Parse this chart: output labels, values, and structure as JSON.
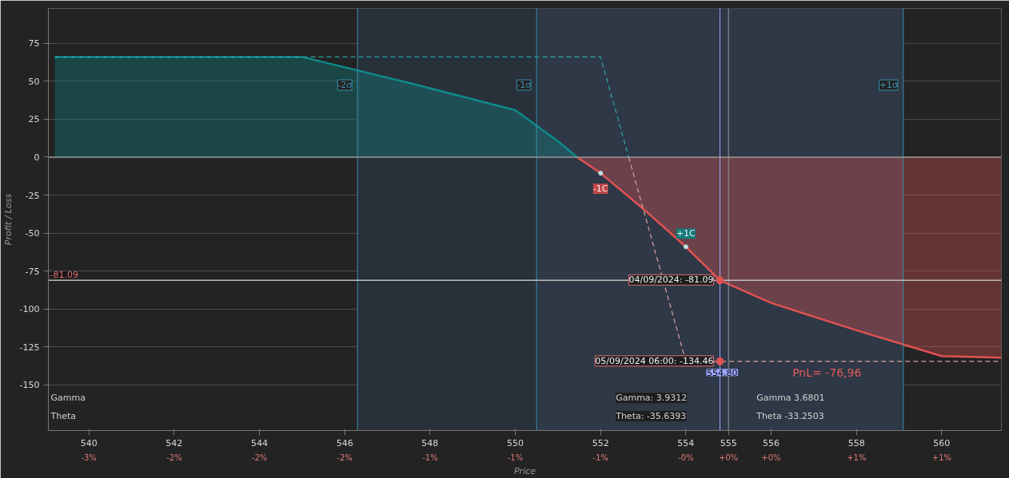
{
  "chart_data": {
    "type": "line",
    "xlabel": "Price",
    "ylabel": "Profit / Loss",
    "xlim": [
      539.05,
      561.4
    ],
    "ylim": [
      -180,
      98
    ],
    "xticks": [
      540,
      542,
      544,
      546,
      548,
      550,
      552,
      554,
      555,
      556,
      558,
      560
    ],
    "x2lim": [
      -2.874,
      1.153
    ],
    "x2ticks": [
      {
        "value": -2.703,
        "label": "-3%"
      },
      {
        "value": -2.342,
        "label": "-2%"
      },
      {
        "value": -1.982,
        "label": "-2%"
      },
      {
        "value": -1.622,
        "label": "-2%"
      },
      {
        "value": -1.261,
        "label": "-1%"
      },
      {
        "value": -0.901,
        "label": "-1%"
      },
      {
        "value": -0.541,
        "label": "-1%"
      },
      {
        "value": -0.18,
        "label": "-0%"
      },
      {
        "value": 0,
        "label": "+0%"
      },
      {
        "value": 0.18,
        "label": "+0%"
      },
      {
        "value": 0.541,
        "label": "+1%"
      },
      {
        "value": 0.901,
        "label": "+1%"
      }
    ],
    "yticks": [
      -150,
      -125,
      -100,
      -75,
      -50,
      -25,
      0,
      25,
      50,
      75
    ],
    "grid": "y",
    "series": [
      {
        "type": "area",
        "color": "#0e8a8a",
        "x": [
          539.2,
          545,
          547.5,
          550,
          551,
          551.45
        ],
        "values": [
          66,
          66,
          49,
          31,
          10.5,
          0
        ]
      },
      {
        "type": "area",
        "color": "#e05252",
        "x": [
          551.45,
          552,
          553,
          554,
          554.8,
          556,
          558,
          560,
          561.4
        ],
        "values": [
          0,
          -10.5,
          -34,
          -59,
          -81.09,
          -96,
          -114,
          -131,
          -132
        ]
      },
      {
        "line_style": "dashed",
        "color": "#2aa8a8",
        "x": [
          539.2,
          552,
          552.66
        ],
        "values": [
          66,
          66,
          0
        ]
      },
      {
        "line_style": "dashed",
        "color": "#d9a0a0",
        "x": [
          552.66,
          554,
          554.8,
          561.4
        ],
        "values": [
          0,
          -134.46,
          -134.46,
          -134.46
        ]
      }
    ],
    "bands": [
      {
        "axis": "x",
        "from": 546.3,
        "to": 559.1,
        "color": "#28303a"
      },
      {
        "axis": "x",
        "from": 550.5,
        "to": 559.1,
        "color": "#2e3846"
      }
    ],
    "ref_lines": [
      {
        "axis": "x",
        "value": 546.3,
        "label": "-2σ",
        "color": "#3a8fb0"
      },
      {
        "axis": "x",
        "value": 550.5,
        "label": "-1σ",
        "color": "#3a8fb0"
      },
      {
        "axis": "x",
        "value": 559.1,
        "label": "+1σ",
        "color": "#3a8fb0"
      },
      {
        "axis": "x",
        "value": 554.8,
        "label": "554.80",
        "color": "#9aa4ff"
      },
      {
        "axis": "x",
        "value": 555,
        "color": "#9a9a9a"
      },
      {
        "axis": "y",
        "value": 0,
        "color": "#9a9a9a"
      },
      {
        "axis": "y",
        "value": -81.09,
        "label": "-81.09",
        "color": "#bdbdbd"
      }
    ],
    "annotations": [
      {
        "text": "-1C",
        "x": 552,
        "y": -10.5
      },
      {
        "text": "+1C",
        "x": 554,
        "y": -59
      },
      {
        "text": "04/09/2024: -81.09",
        "x": 554.8,
        "y": -81.09
      },
      {
        "text": "05/09/2024 06:00: -134.46",
        "x": 554.8,
        "y": -134.46
      },
      "PnL= -76,96",
      "Gamma",
      "Theta",
      "Gamma: 3.9312",
      "Theta: -35.6393",
      "Gamma 3.6801",
      "Theta -33.2503"
    ]
  }
}
